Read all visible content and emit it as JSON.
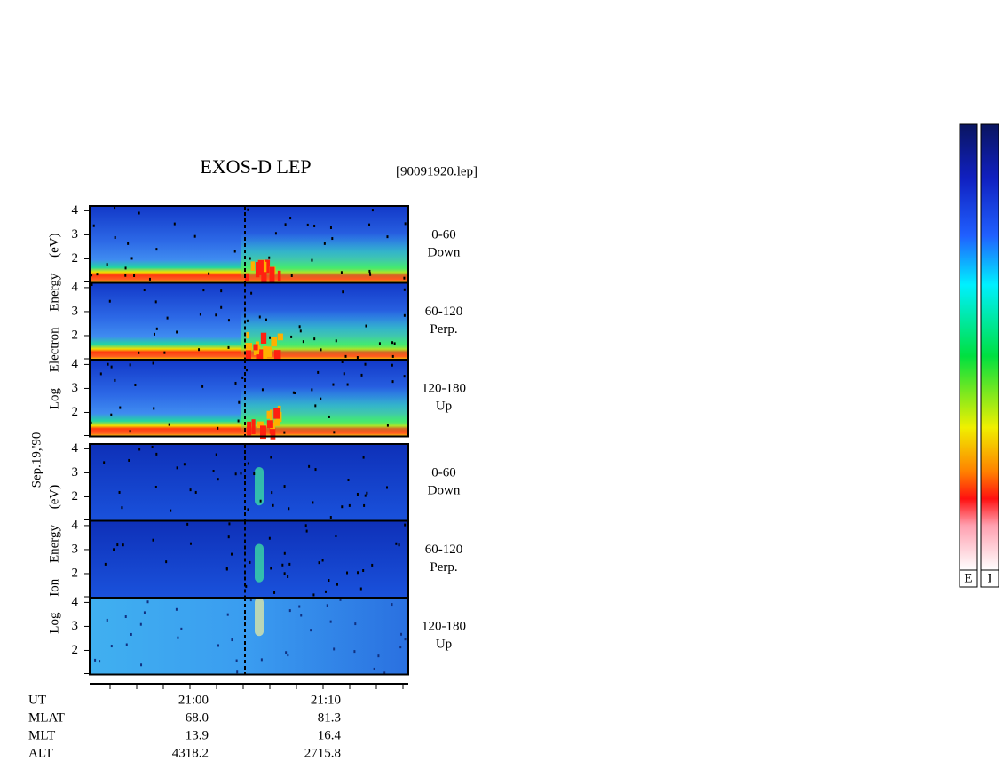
{
  "chart_data": {
    "type": "spectrogram",
    "title": "EXOS-D LEP",
    "file_label": "[90091920.lep]",
    "date_label": "Sep.19,'90",
    "ylim": [
      1,
      4.2
    ],
    "yticks": [
      2,
      3,
      4
    ],
    "groups": [
      {
        "axis_label": "Log Electron Energy (eV)",
        "kind": "electron",
        "panels": [
          {
            "label": [
              "0-60",
              "Down"
            ]
          },
          {
            "label": [
              "60-120",
              "Perp."
            ]
          },
          {
            "label": [
              "120-180",
              "Up"
            ]
          }
        ]
      },
      {
        "axis_label": "Log Ion Energy (eV)",
        "kind": "ion",
        "panels": [
          {
            "label": [
              "0-60",
              "Down"
            ]
          },
          {
            "label": [
              "60-120",
              "Perp."
            ]
          },
          {
            "label": [
              "120-180",
              "Up"
            ]
          }
        ]
      }
    ],
    "info_rows": [
      {
        "name": "UT",
        "values": [
          "21:00",
          "21:10"
        ]
      },
      {
        "name": "MLAT",
        "values": [
          "68.0",
          "81.3"
        ]
      },
      {
        "name": "MLT",
        "values": [
          "13.9",
          "16.4"
        ]
      },
      {
        "name": "ALT",
        "values": [
          "4318.2",
          "2715.8"
        ]
      }
    ],
    "colorbars": [
      "E",
      "I"
    ]
  }
}
